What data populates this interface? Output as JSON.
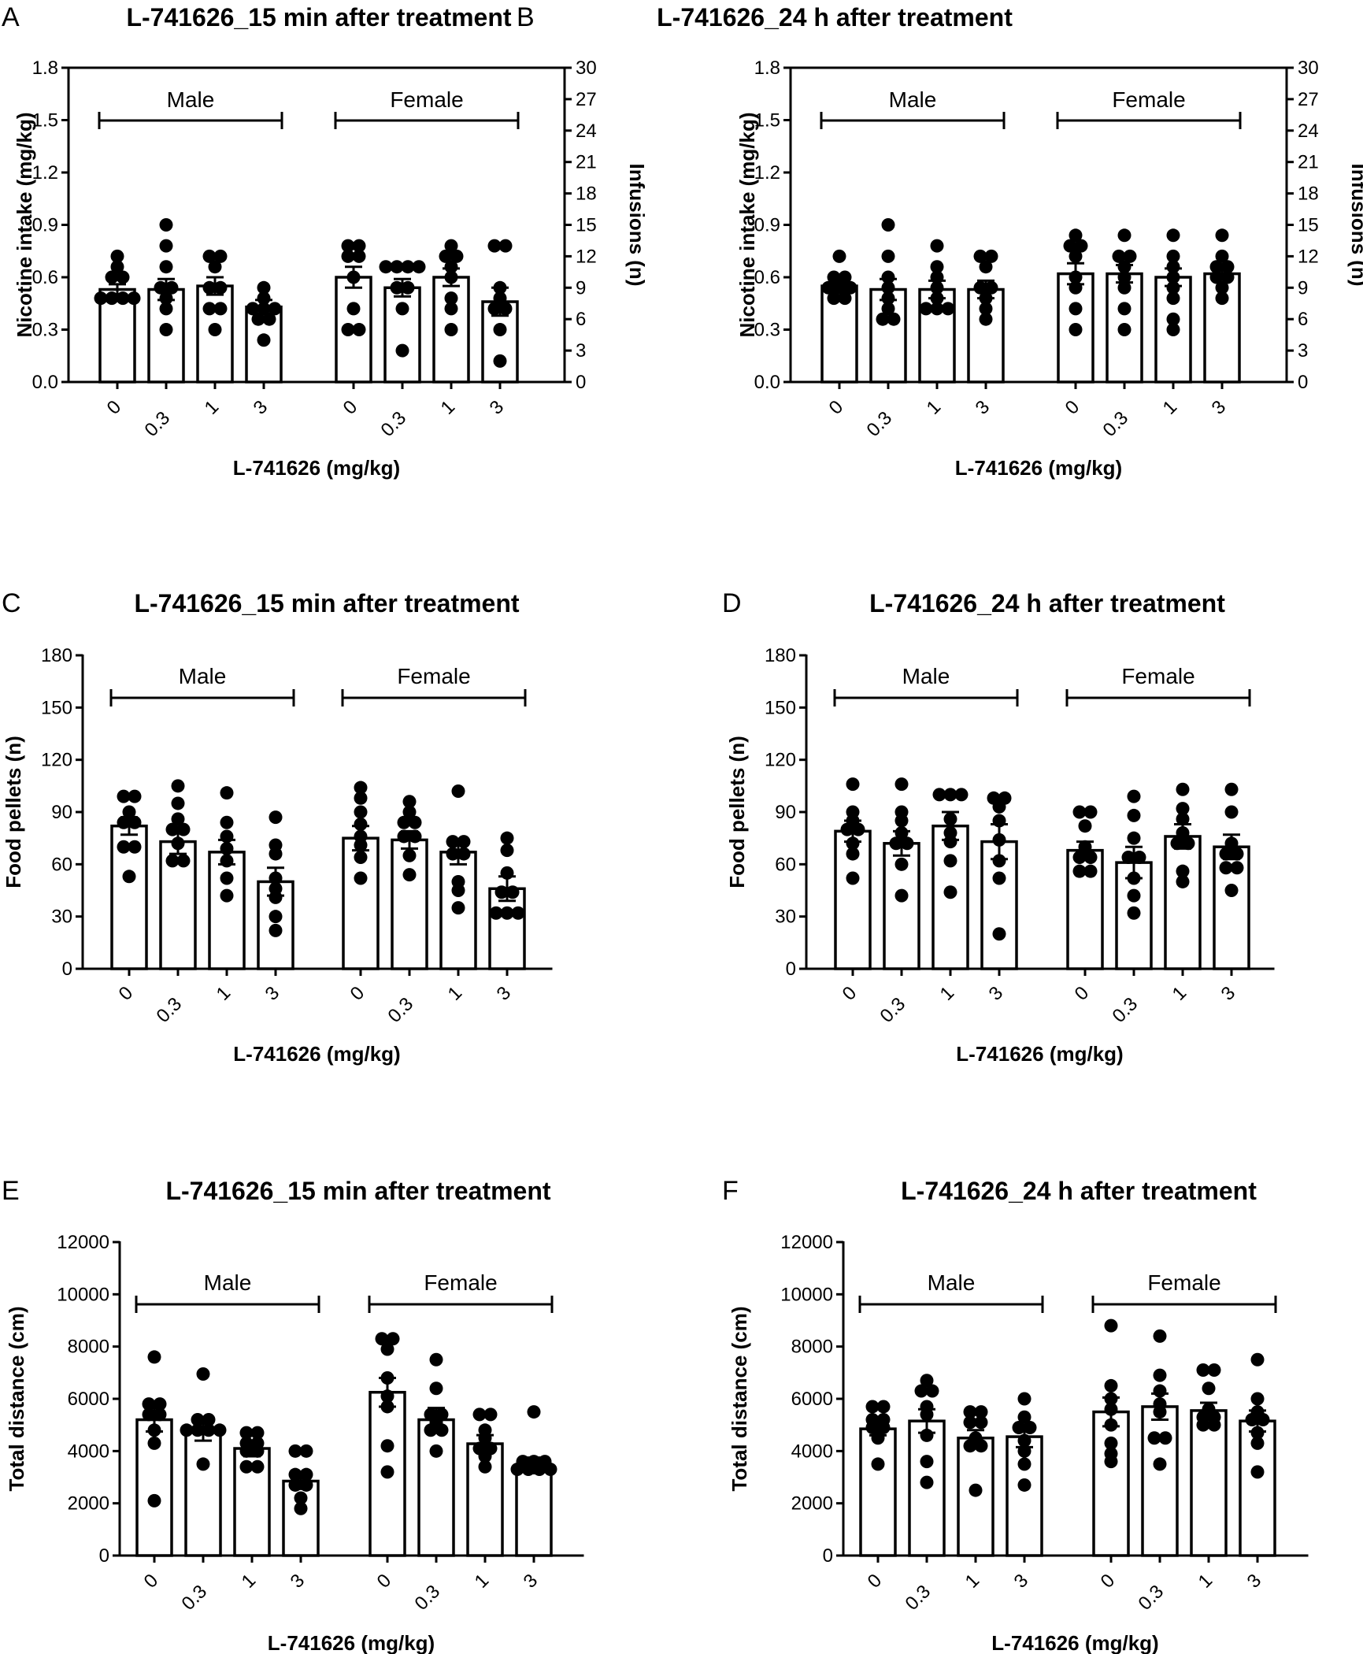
{
  "chart_data": [
    {
      "panel": "A",
      "type": "bar",
      "title": "L-741626_15 min after treatment",
      "xlabel": "L-741626 (mg/kg)",
      "ylabel": "Nicotine intake (mg/kg)",
      "ylim": [
        0,
        1.8
      ],
      "yticks": [
        "0.0",
        "0.3",
        "0.6",
        "0.9",
        "1.2",
        "1.5",
        "1.8"
      ],
      "y2label": "Infusions (n)",
      "y2ticks": [
        "0",
        "3",
        "6",
        "9",
        "12",
        "15",
        "18",
        "21",
        "24",
        "27",
        "30"
      ],
      "groups": [
        "Male",
        "Female"
      ],
      "categories": [
        "0",
        "0.3",
        "1",
        "3",
        "0",
        "0.3",
        "1",
        "3"
      ],
      "values": [
        0.53,
        0.53,
        0.55,
        0.43,
        0.6,
        0.54,
        0.6,
        0.46
      ],
      "sem": [
        0.03,
        0.06,
        0.05,
        0.04,
        0.06,
        0.05,
        0.05,
        0.08
      ],
      "points": [
        [
          0.72,
          0.66,
          0.6,
          0.6,
          0.48,
          0.48,
          0.48,
          0.48
        ],
        [
          0.9,
          0.78,
          0.66,
          0.54,
          0.54,
          0.48,
          0.42,
          0.3
        ],
        [
          0.72,
          0.72,
          0.66,
          0.54,
          0.54,
          0.42,
          0.42,
          0.3
        ],
        [
          0.54,
          0.48,
          0.42,
          0.42,
          0.42,
          0.36,
          0.36,
          0.24
        ],
        [
          0.78,
          0.78,
          0.72,
          0.72,
          0.6,
          0.42,
          0.3,
          0.3
        ],
        [
          0.66,
          0.66,
          0.66,
          0.66,
          0.54,
          0.54,
          0.42,
          0.18
        ],
        [
          0.78,
          0.72,
          0.72,
          0.66,
          0.6,
          0.48,
          0.42,
          0.3
        ],
        [
          0.78,
          0.78,
          0.54,
          0.48,
          0.42,
          0.42,
          0.3,
          0.12
        ]
      ]
    },
    {
      "panel": "B",
      "type": "bar",
      "title": "L-741626_24 h after treatment",
      "xlabel": "L-741626 (mg/kg)",
      "ylabel": "Nicotine intake (mg/kg)",
      "ylim": [
        0,
        1.8
      ],
      "yticks": [
        "0.0",
        "0.3",
        "0.6",
        "0.9",
        "1.2",
        "1.5",
        "1.8"
      ],
      "y2label": "Infusions (n)",
      "y2ticks": [
        "0",
        "3",
        "6",
        "9",
        "12",
        "15",
        "18",
        "21",
        "24",
        "27",
        "30"
      ],
      "groups": [
        "Male",
        "Female"
      ],
      "categories": [
        "0",
        "0.3",
        "1",
        "3",
        "0",
        "0.3",
        "1",
        "3"
      ],
      "values": [
        0.55,
        0.53,
        0.53,
        0.53,
        0.62,
        0.62,
        0.6,
        0.62
      ],
      "sem": [
        0.03,
        0.06,
        0.05,
        0.05,
        0.06,
        0.05,
        0.05,
        0.03
      ],
      "points": [
        [
          0.72,
          0.6,
          0.6,
          0.54,
          0.54,
          0.54,
          0.48,
          0.48
        ],
        [
          0.9,
          0.72,
          0.6,
          0.54,
          0.48,
          0.42,
          0.36,
          0.36
        ],
        [
          0.78,
          0.66,
          0.6,
          0.54,
          0.48,
          0.42,
          0.42,
          0.42
        ],
        [
          0.72,
          0.72,
          0.66,
          0.54,
          0.54,
          0.48,
          0.42,
          0.36
        ],
        [
          0.84,
          0.78,
          0.78,
          0.72,
          0.6,
          0.54,
          0.42,
          0.3
        ],
        [
          0.84,
          0.72,
          0.72,
          0.66,
          0.6,
          0.54,
          0.42,
          0.3
        ],
        [
          0.84,
          0.72,
          0.66,
          0.6,
          0.54,
          0.48,
          0.36,
          0.3
        ],
        [
          0.84,
          0.72,
          0.66,
          0.66,
          0.6,
          0.6,
          0.54,
          0.48
        ]
      ]
    },
    {
      "panel": "C",
      "type": "bar",
      "title": "L-741626_15 min after treatment",
      "xlabel": "L-741626 (mg/kg)",
      "ylabel": "Food pellets (n)",
      "ylim": [
        0,
        180
      ],
      "yticks": [
        "0",
        "30",
        "60",
        "90",
        "120",
        "150",
        "180"
      ],
      "groups": [
        "Male",
        "Female"
      ],
      "categories": [
        "0",
        "0.3",
        "1",
        "3",
        "0",
        "0.3",
        "1",
        "3"
      ],
      "values": [
        82,
        73,
        67,
        50,
        75,
        74,
        67,
        46
      ],
      "sem": [
        5,
        7,
        7,
        8,
        7,
        5,
        7,
        7
      ],
      "points": [
        [
          99,
          95,
          90,
          84,
          81,
          70,
          68,
          53
        ],
        [
          105,
          95,
          86,
          80,
          78,
          72,
          62,
          60
        ],
        [
          101,
          84,
          76,
          69,
          62,
          52,
          42
        ],
        [
          87,
          71,
          66,
          52,
          46,
          41,
          30,
          22
        ],
        [
          104,
          98,
          90,
          83,
          76,
          71,
          64,
          52
        ],
        [
          96,
          90,
          84,
          81,
          76,
          72,
          65,
          54
        ],
        [
          102,
          73,
          70,
          66,
          63,
          50,
          45,
          35
        ],
        [
          75,
          68,
          55,
          44,
          40,
          32,
          30,
          28
        ]
      ]
    },
    {
      "panel": "D",
      "type": "bar",
      "title": "L-741626_24 h after treatment",
      "xlabel": "L-741626 (mg/kg)",
      "ylabel": "Food pellets (n)",
      "ylim": [
        0,
        180
      ],
      "yticks": [
        "0",
        "30",
        "60",
        "90",
        "120",
        "150",
        "180"
      ],
      "groups": [
        "Male",
        "Female"
      ],
      "categories": [
        "0",
        "0.3",
        "1",
        "3",
        "0",
        "0.3",
        "1",
        "3"
      ],
      "values": [
        79,
        72,
        82,
        73,
        68,
        61,
        76,
        70
      ],
      "sem": [
        6,
        7,
        8,
        10,
        5,
        9,
        7,
        7
      ],
      "points": [
        [
          106,
          90,
          85,
          80,
          76,
          72,
          66,
          52
        ],
        [
          106,
          90,
          85,
          78,
          72,
          68,
          60,
          42
        ],
        [
          100,
          98,
          98,
          86,
          78,
          73,
          62,
          44
        ],
        [
          98,
          98,
          93,
          85,
          74,
          62,
          52,
          20
        ],
        [
          90,
          86,
          82,
          70,
          64,
          62,
          56,
          52
        ],
        [
          99,
          88,
          75,
          64,
          60,
          52,
          42,
          32
        ],
        [
          103,
          92,
          86,
          78,
          72,
          68,
          56,
          50
        ],
        [
          103,
          90,
          72,
          66,
          62,
          58,
          54,
          45
        ]
      ]
    },
    {
      "panel": "E",
      "type": "bar",
      "title": "L-741626_15 min after treatment",
      "xlabel": "L-741626 (mg/kg)",
      "ylabel": "Total distance (cm)",
      "ylim": [
        0,
        12000
      ],
      "yticks": [
        "0",
        "2000",
        "4000",
        "6000",
        "8000",
        "10000",
        "12000"
      ],
      "groups": [
        "Male",
        "Female"
      ],
      "categories": [
        "0",
        "0.3",
        "1",
        "3",
        "0",
        "0.3",
        "1",
        "3"
      ],
      "values": [
        5200,
        4800,
        4100,
        2850,
        6250,
        5200,
        4280,
        3450
      ],
      "sem": [
        450,
        400,
        300,
        300,
        550,
        450,
        330,
        300
      ],
      "points": [
        [
          7600,
          5800,
          5600,
          5400,
          5200,
          4800,
          4300,
          2100
        ],
        [
          6950,
          5200,
          5000,
          4800,
          4700,
          4600,
          4600,
          3500
        ],
        [
          4700,
          4500,
          4300,
          4200,
          4000,
          3900,
          3400,
          3200
        ],
        [
          4000,
          3800,
          3100,
          2900,
          2700,
          2500,
          2200,
          1800
        ],
        [
          8300,
          8200,
          7900,
          6800,
          6100,
          5700,
          4200,
          3200
        ],
        [
          7500,
          6400,
          5400,
          5300,
          5100,
          4800,
          4600,
          4000
        ],
        [
          5400,
          5300,
          4800,
          4500,
          4100,
          4000,
          3800,
          3400
        ],
        [
          5500,
          3600,
          3500,
          3400,
          3300,
          3200,
          3100,
          3100
        ]
      ]
    },
    {
      "panel": "F",
      "type": "bar",
      "title": "L-741626_24 h after treatment",
      "xlabel": "L-741626 (mg/kg)",
      "ylabel": "Total distance (cm)",
      "ylim": [
        0,
        12000
      ],
      "yticks": [
        "0",
        "2000",
        "4000",
        "6000",
        "8000",
        "10000",
        "12000"
      ],
      "groups": [
        "Male",
        "Female"
      ],
      "categories": [
        "0",
        "0.3",
        "1",
        "3",
        "0",
        "0.3",
        "1",
        "3"
      ],
      "values": [
        4850,
        5150,
        4500,
        4550,
        5500,
        5700,
        5550,
        5150
      ],
      "sem": [
        250,
        450,
        300,
        400,
        550,
        500,
        300,
        400
      ],
      "points": [
        [
          5700,
          5500,
          5200,
          5100,
          4900,
          4700,
          4500,
          3500
        ],
        [
          6700,
          6300,
          6200,
          5700,
          5400,
          4600,
          3600,
          2800
        ],
        [
          5500,
          5300,
          5100,
          4900,
          4500,
          4200,
          4000,
          2500
        ],
        [
          6000,
          5300,
          4900,
          4800,
          4400,
          4000,
          3500,
          2700
        ],
        [
          8800,
          6500,
          6000,
          5600,
          5000,
          4300,
          3900,
          3600
        ],
        [
          8400,
          6900,
          6300,
          5800,
          5500,
          4500,
          4300,
          3500
        ],
        [
          7100,
          7000,
          6400,
          5600,
          5300,
          5100,
          5000,
          4800
        ],
        [
          7500,
          6000,
          5500,
          5200,
          5100,
          4700,
          4300,
          3200
        ]
      ]
    }
  ]
}
